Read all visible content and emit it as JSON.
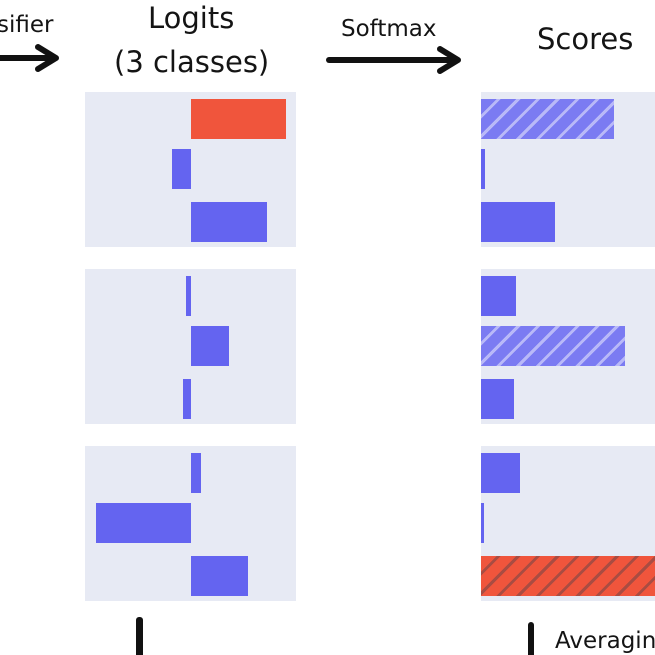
{
  "labels": {
    "left_cut": "sifier",
    "logits_title_line1": "Logits",
    "logits_title_line2": "(3 classes)",
    "softmax": "Softmax",
    "scores_title": "Scores",
    "averaging_cut": "Averagin"
  },
  "colors": {
    "panel_bg": "#e7eaf4",
    "bar_blue": "#6464f0",
    "bar_red": "#f0553c",
    "hatch_blue_base": "#7b7bf2",
    "hatch_blue_stripe": "#b9b9f8",
    "hatch_red_base": "#f0553c",
    "hatch_red_stripe": "#a94c42",
    "arrow": "#111111",
    "text": "#141414"
  },
  "chart_data": {
    "type": "bar",
    "logits": [
      [
        {
          "value": 1.0,
          "color": "red"
        },
        {
          "value": -0.2,
          "color": "blue"
        },
        {
          "value": 0.8,
          "color": "blue"
        }
      ],
      [
        {
          "value": -0.05,
          "color": "blue"
        },
        {
          "value": 0.4,
          "color": "blue"
        },
        {
          "value": -0.08,
          "color": "blue"
        }
      ],
      [
        {
          "value": 0.1,
          "color": "blue"
        },
        {
          "value": -1.0,
          "color": "blue"
        },
        {
          "value": 0.6,
          "color": "blue"
        }
      ]
    ],
    "scores": [
      [
        {
          "value": 0.76,
          "color": "blue",
          "hatched": true
        },
        {
          "value": 0.02,
          "color": "blue",
          "hatched": false
        },
        {
          "value": 0.42,
          "color": "blue",
          "hatched": false
        }
      ],
      [
        {
          "value": 0.2,
          "color": "blue",
          "hatched": false
        },
        {
          "value": 0.82,
          "color": "blue",
          "hatched": true
        },
        {
          "value": 0.19,
          "color": "blue",
          "hatched": false
        }
      ],
      [
        {
          "value": 0.22,
          "color": "blue",
          "hatched": false
        },
        {
          "value": 0.01,
          "color": "blue",
          "hatched": false
        },
        {
          "value": 1.0,
          "color": "red",
          "hatched": true
        }
      ]
    ]
  }
}
